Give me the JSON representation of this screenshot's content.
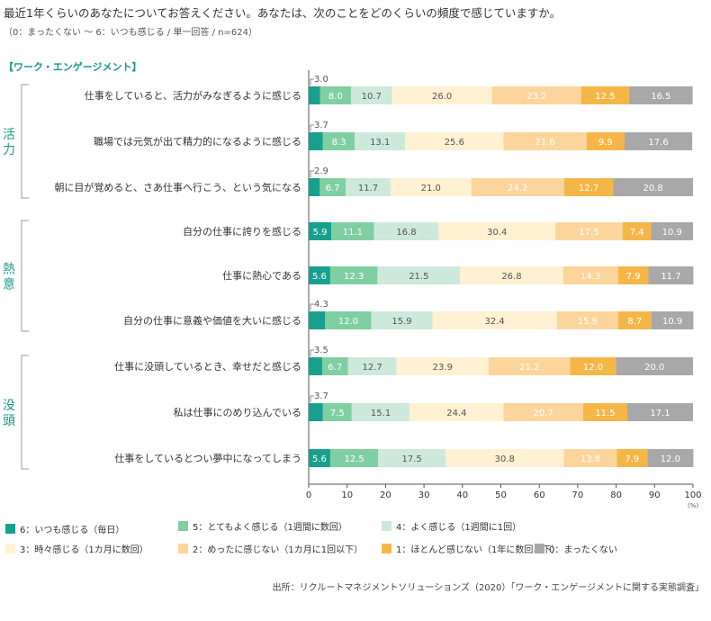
{
  "title": "最近1年くらいのあなたについてお答えください。あなたは、次のことをどのくらいの頻度で感じていますか。",
  "subtitle": "（0：まったくない 〜 6：いつも感じる / 単一回答 / n=624）",
  "section_label": "【ワーク・エンゲージメント】",
  "source": "出所：リクルートマネジメントソリューションズ（2020）「ワーク・エンゲージメントに関する実態調査」",
  "chart_data": {
    "type": "bar",
    "orientation": "horizontal-stacked-100",
    "x_unit": "(%)",
    "xlim": [
      0,
      100
    ],
    "x_ticks": [
      0,
      10,
      20,
      30,
      40,
      50,
      60,
      70,
      80,
      90,
      100
    ],
    "groups": [
      {
        "name": "活力",
        "items": [
          0,
          1,
          2
        ]
      },
      {
        "name": "熱意",
        "items": [
          3,
          4,
          5
        ]
      },
      {
        "name": "没頭",
        "items": [
          6,
          7,
          8
        ]
      }
    ],
    "categories": [
      "仕事をしていると、活力がみなぎるように感じる",
      "職場では元気が出て精力的になるように感じる",
      "朝に目が覚めると、さあ仕事へ行こう、という気になる",
      "自分の仕事に誇りを感じる",
      "仕事に熱心である",
      "自分の仕事に意義や価値を大いに感じる",
      "仕事に没頭しているとき、幸せだと感じる",
      "私は仕事にのめり込んでいる",
      "仕事をしているとつい夢中になってしまう"
    ],
    "series": [
      {
        "name": "6：いつも感じる（毎日）",
        "color": "#17a08e",
        "text_color": "#ffffff",
        "values": [
          3.0,
          3.7,
          2.9,
          5.9,
          5.6,
          4.3,
          3.5,
          3.7,
          5.6
        ]
      },
      {
        "name": "5：とてもよく感じる（1週間に数回）",
        "color": "#7fcfa3",
        "text_color": "#ffffff",
        "values": [
          8.0,
          8.3,
          6.7,
          11.1,
          12.3,
          12.0,
          6.7,
          7.5,
          12.5
        ]
      },
      {
        "name": "4：よく感じる（1週間に1回）",
        "color": "#cde9dc",
        "text_color": "#555555",
        "values": [
          10.7,
          13.1,
          11.7,
          16.8,
          21.5,
          15.9,
          12.7,
          15.1,
          17.5
        ]
      },
      {
        "name": "3：時々感じる（1カ月に数回）",
        "color": "#fff1d2",
        "text_color": "#555555",
        "values": [
          26.0,
          25.6,
          21.0,
          30.4,
          26.8,
          32.4,
          23.9,
          24.4,
          30.8
        ]
      },
      {
        "name": "2：めったに感じない（1カ月に1回以下）",
        "color": "#fcd59c",
        "text_color": "#ffffff",
        "values": [
          23.2,
          21.6,
          24.2,
          17.5,
          14.3,
          15.9,
          21.2,
          20.7,
          13.8
        ]
      },
      {
        "name": "1：ほとんど感じない（1年に数回以下）",
        "color": "#f5b648",
        "text_color": "#ffffff",
        "values": [
          12.5,
          9.9,
          12.7,
          7.4,
          7.9,
          8.7,
          12.0,
          11.5,
          7.9
        ]
      },
      {
        "name": "0：まったくない",
        "color": "#a8a8a8",
        "text_color": "#ffffff",
        "values": [
          16.5,
          17.6,
          20.8,
          10.9,
          11.7,
          10.9,
          20.0,
          17.1,
          12.0
        ]
      }
    ]
  }
}
